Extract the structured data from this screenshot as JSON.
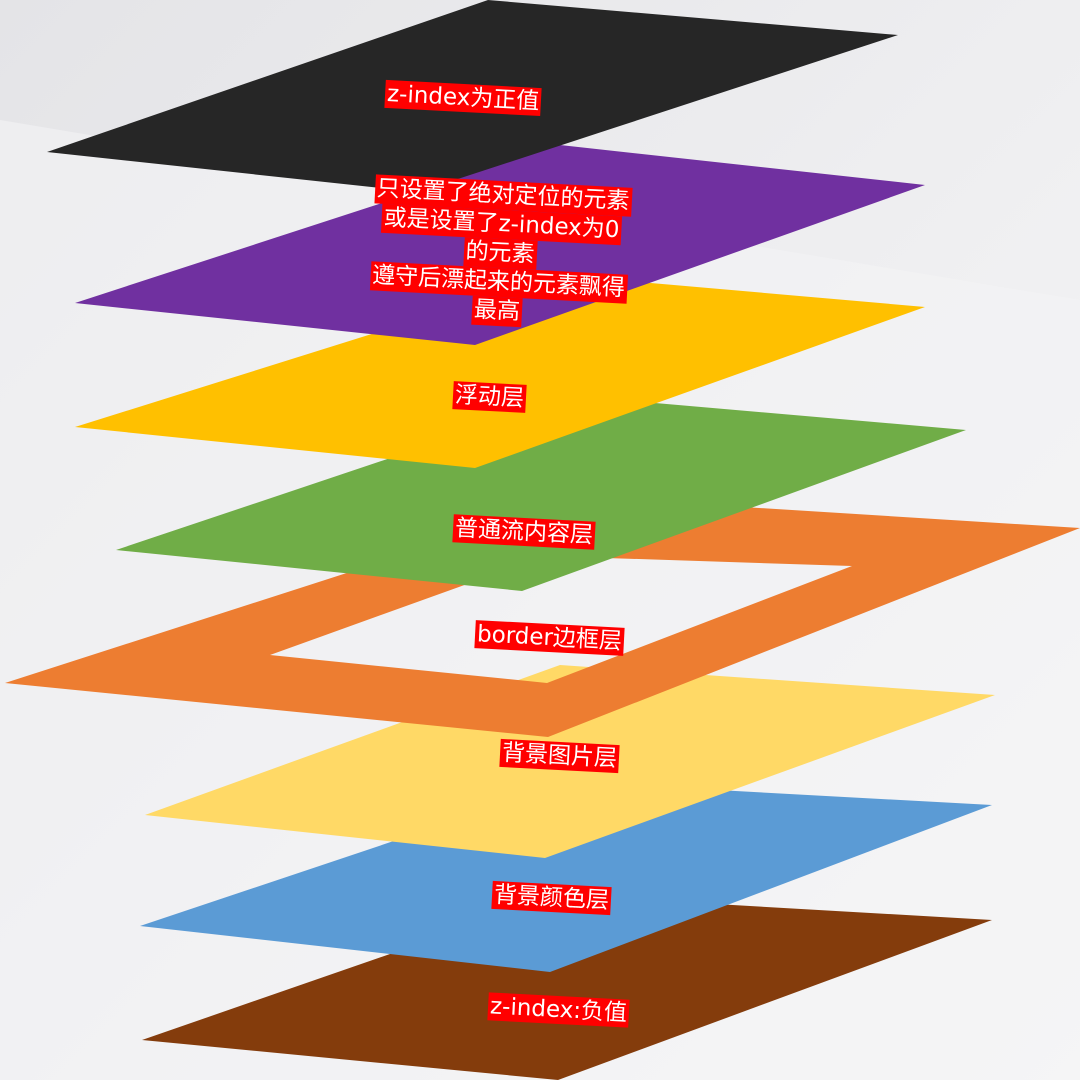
{
  "diagram": {
    "label_bg": "#ff0000",
    "label_fg": "#ffffff",
    "layers": [
      {
        "id": "positive-z",
        "color": "#262626",
        "label": "z-index为正值"
      },
      {
        "id": "positioned-z0",
        "color": "#7030a0",
        "label_lines": [
          "只设置了绝对定位的元素",
          "或是设置了z-index为0",
          "的元素",
          "遵守后漂起来的元素飘得",
          "最高"
        ]
      },
      {
        "id": "float",
        "color": "#ffc000",
        "label": "浮动层"
      },
      {
        "id": "normal-flow",
        "color": "#70ad47",
        "label": "普通流内容层"
      },
      {
        "id": "border",
        "color": "#ed7d31",
        "label": "border边框层"
      },
      {
        "id": "bg-image",
        "color": "#ffd966",
        "label": "背景图片层"
      },
      {
        "id": "bg-color",
        "color": "#5b9bd5",
        "label": "背景颜色层"
      },
      {
        "id": "negative-z",
        "color": "#843c0c",
        "label": "z-index:负值"
      }
    ]
  }
}
